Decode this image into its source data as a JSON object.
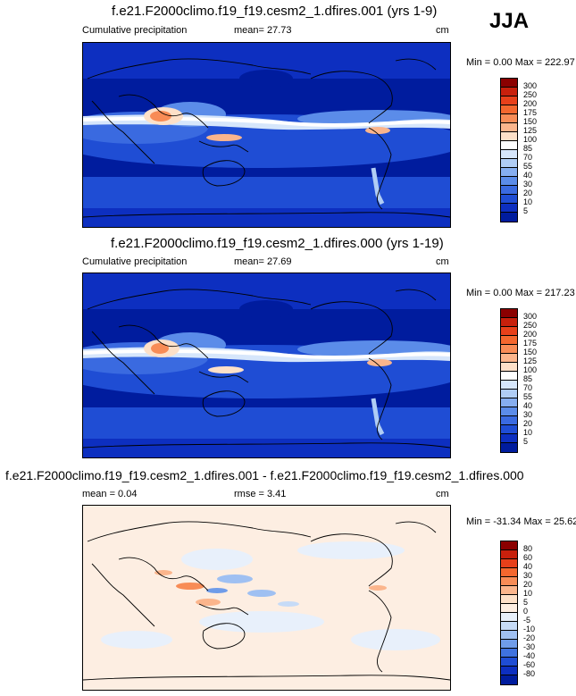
{
  "season": "JJA",
  "panels": [
    {
      "title": "f.e21.F2000climo.f19_f19.cesm2_1.dfires.001 (yrs 1-9)",
      "left_label": "Cumulative precipitation",
      "center_label": "mean=  27.73",
      "units": "cm",
      "minmax": "Min =   0.00 Max = 222.97",
      "levels": [
        "300",
        "250",
        "200",
        "175",
        "150",
        "125",
        "100",
        "85",
        "70",
        "55",
        "40",
        "30",
        "20",
        "10",
        "5"
      ],
      "colors": [
        "#8b0000",
        "#c8200c",
        "#e8401a",
        "#f4672e",
        "#f88c56",
        "#fbb58c",
        "#fde0c8",
        "#ffffff",
        "#d6e6fb",
        "#b0cdf5",
        "#86aef0",
        "#5b8ce9",
        "#3a6ae0",
        "#1f4dd4",
        "#0d2fc0",
        "#001c9e"
      ]
    },
    {
      "title": "f.e21.F2000climo.f19_f19.cesm2_1.dfires.000 (yrs 1-19)",
      "left_label": "Cumulative precipitation",
      "center_label": "mean=  27.69",
      "units": "cm",
      "minmax": "Min =   0.00 Max = 217.23",
      "levels": [
        "300",
        "250",
        "200",
        "175",
        "150",
        "125",
        "100",
        "85",
        "70",
        "55",
        "40",
        "30",
        "20",
        "10",
        "5"
      ],
      "colors": [
        "#8b0000",
        "#c8200c",
        "#e8401a",
        "#f4672e",
        "#f88c56",
        "#fbb58c",
        "#fde0c8",
        "#ffffff",
        "#d6e6fb",
        "#b0cdf5",
        "#86aef0",
        "#5b8ce9",
        "#3a6ae0",
        "#1f4dd4",
        "#0d2fc0",
        "#001c9e"
      ]
    },
    {
      "title": "f.e21.F2000climo.f19_f19.cesm2_1.dfires.001 - f.e21.F2000climo.f19_f19.cesm2_1.dfires.000",
      "left_label": "mean =  0.04",
      "center_label": "rmse =  3.41",
      "units": "cm",
      "minmax": "Min = -31.34 Max = 25.62",
      "levels": [
        "80",
        "60",
        "40",
        "30",
        "20",
        "10",
        "5",
        "0",
        "-5",
        "-10",
        "-20",
        "-30",
        "-40",
        "-60",
        "-80"
      ],
      "colors": [
        "#8b0000",
        "#c8200c",
        "#e8401a",
        "#f4672e",
        "#f88c56",
        "#fbb58c",
        "#fde0c8",
        "#fdeee2",
        "#e8f0fb",
        "#c6dbf7",
        "#9fc0f2",
        "#6f9ce9",
        "#3f72df",
        "#1f4dd4",
        "#0d2fc0",
        "#001c9e"
      ]
    }
  ]
}
